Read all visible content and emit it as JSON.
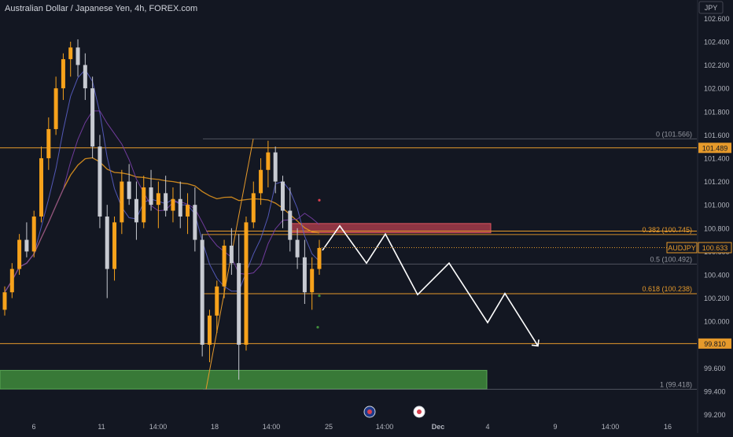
{
  "title": "Australian Dollar / Japanese Yen, 4h, FOREX.com",
  "currency": "JPY",
  "colors": {
    "background": "#131722",
    "bull": "#f7a21b",
    "bear": "#c7cad1",
    "level": "#e69a2b",
    "fib_text": "#9598a1",
    "grid_text": "#b2b5be",
    "ma_long": "#e0931e",
    "ma_short": "#5a5fc7",
    "ma_mid": "#7a3fa8",
    "supply_zone": "#b8404f",
    "demand_zone": "#3f8b3b",
    "projection": "#ffffff"
  },
  "chart_data": {
    "type": "candlestick",
    "title": "Australian Dollar / Japanese Yen, 4h, FOREX.com",
    "y_axis": {
      "unit": "JPY",
      "range": [
        99.13,
        102.69
      ],
      "ticks": [
        "102.600",
        "102.400",
        "102.200",
        "102.000",
        "101.800",
        "101.600",
        "101.400",
        "101.200",
        "101.000",
        "100.800",
        "100.600",
        "100.400",
        "100.200",
        "100.000",
        "99.800",
        "99.600",
        "99.400",
        "99.200"
      ]
    },
    "x_axis": {
      "ticks": [
        "6",
        "11",
        "14:00",
        "18",
        "14:00",
        "25",
        "14:00",
        "Dec",
        "4",
        "9",
        "14:00",
        "16"
      ]
    },
    "current_price": {
      "label": "AUDJPY",
      "value": "100.633"
    },
    "horizontal_levels": [
      {
        "value": 101.489,
        "label": "101.489"
      },
      {
        "value": 100.775,
        "label": ""
      },
      {
        "value": 100.238,
        "label": ""
      },
      {
        "value": 99.81,
        "label": "99.810"
      }
    ],
    "fibonacci": [
      {
        "ratio": "0",
        "price": 101.566,
        "text": "0 (101.566)",
        "highlight": false
      },
      {
        "ratio": "0.382",
        "price": 100.745,
        "text": "0.382 (100.745)",
        "highlight": true
      },
      {
        "ratio": "0.5",
        "price": 100.492,
        "text": "0.5 (100.492)",
        "highlight": false
      },
      {
        "ratio": "0.618",
        "price": 100.238,
        "text": "0.618 (100.238)",
        "highlight": true
      },
      {
        "ratio": "1",
        "price": 99.418,
        "text": "1 (99.418)",
        "highlight": false
      }
    ],
    "zones": [
      {
        "kind": "supply",
        "top": 100.84,
        "bottom": 100.76
      },
      {
        "kind": "demand",
        "top": 99.58,
        "bottom": 99.42
      }
    ],
    "projection_path": [
      100.61,
      100.82,
      100.5,
      100.75,
      100.23,
      100.5,
      99.99,
      100.24,
      99.79
    ],
    "candles": [
      [
        100.1,
        100.3,
        100.05,
        100.25
      ],
      [
        100.25,
        100.5,
        100.2,
        100.45
      ],
      [
        100.45,
        100.75,
        100.4,
        100.7
      ],
      [
        100.7,
        100.85,
        100.55,
        100.6
      ],
      [
        100.6,
        100.95,
        100.55,
        100.9
      ],
      [
        100.9,
        101.5,
        100.85,
        101.4
      ],
      [
        101.4,
        101.75,
        101.3,
        101.65
      ],
      [
        101.65,
        102.1,
        101.6,
        102.0
      ],
      [
        102.0,
        102.3,
        101.9,
        102.25
      ],
      [
        102.25,
        102.4,
        102.1,
        102.35
      ],
      [
        102.35,
        102.42,
        102.1,
        102.2
      ],
      [
        102.2,
        102.3,
        101.9,
        102.0
      ],
      [
        102.0,
        102.1,
        101.4,
        101.5
      ],
      [
        101.5,
        101.6,
        100.8,
        100.9
      ],
      [
        100.9,
        101.0,
        100.2,
        100.45
      ],
      [
        100.45,
        100.9,
        100.35,
        100.85
      ],
      [
        100.85,
        101.3,
        100.75,
        101.2
      ],
      [
        101.2,
        101.35,
        101.0,
        101.05
      ],
      [
        101.05,
        101.2,
        100.7,
        100.85
      ],
      [
        100.85,
        101.25,
        100.8,
        101.15
      ],
      [
        101.15,
        101.3,
        100.95,
        101.0
      ],
      [
        101.0,
        101.2,
        100.8,
        101.1
      ],
      [
        101.1,
        101.25,
        100.9,
        100.95
      ],
      [
        100.95,
        101.15,
        100.85,
        101.05
      ],
      [
        101.05,
        101.2,
        100.8,
        100.9
      ],
      [
        100.9,
        101.1,
        100.75,
        101.0
      ],
      [
        101.0,
        101.15,
        100.6,
        100.7
      ],
      [
        100.7,
        100.75,
        99.7,
        99.8
      ],
      [
        99.8,
        100.1,
        99.65,
        100.05
      ],
      [
        100.05,
        100.35,
        99.9,
        100.3
      ],
      [
        100.3,
        100.7,
        100.2,
        100.65
      ],
      [
        100.65,
        100.8,
        100.4,
        100.5
      ],
      [
        100.5,
        100.75,
        99.5,
        99.8
      ],
      [
        99.8,
        100.9,
        99.75,
        100.85
      ],
      [
        100.85,
        101.2,
        100.8,
        101.1
      ],
      [
        101.1,
        101.4,
        101.0,
        101.3
      ],
      [
        101.3,
        101.55,
        101.15,
        101.45
      ],
      [
        101.45,
        101.5,
        101.1,
        101.2
      ],
      [
        101.2,
        101.25,
        100.8,
        100.95
      ],
      [
        100.95,
        101.15,
        100.6,
        100.7
      ],
      [
        100.7,
        100.8,
        100.45,
        100.55
      ],
      [
        100.55,
        100.7,
        100.15,
        100.25
      ],
      [
        100.25,
        100.55,
        100.1,
        100.45
      ],
      [
        100.45,
        100.7,
        100.4,
        100.63
      ]
    ]
  }
}
